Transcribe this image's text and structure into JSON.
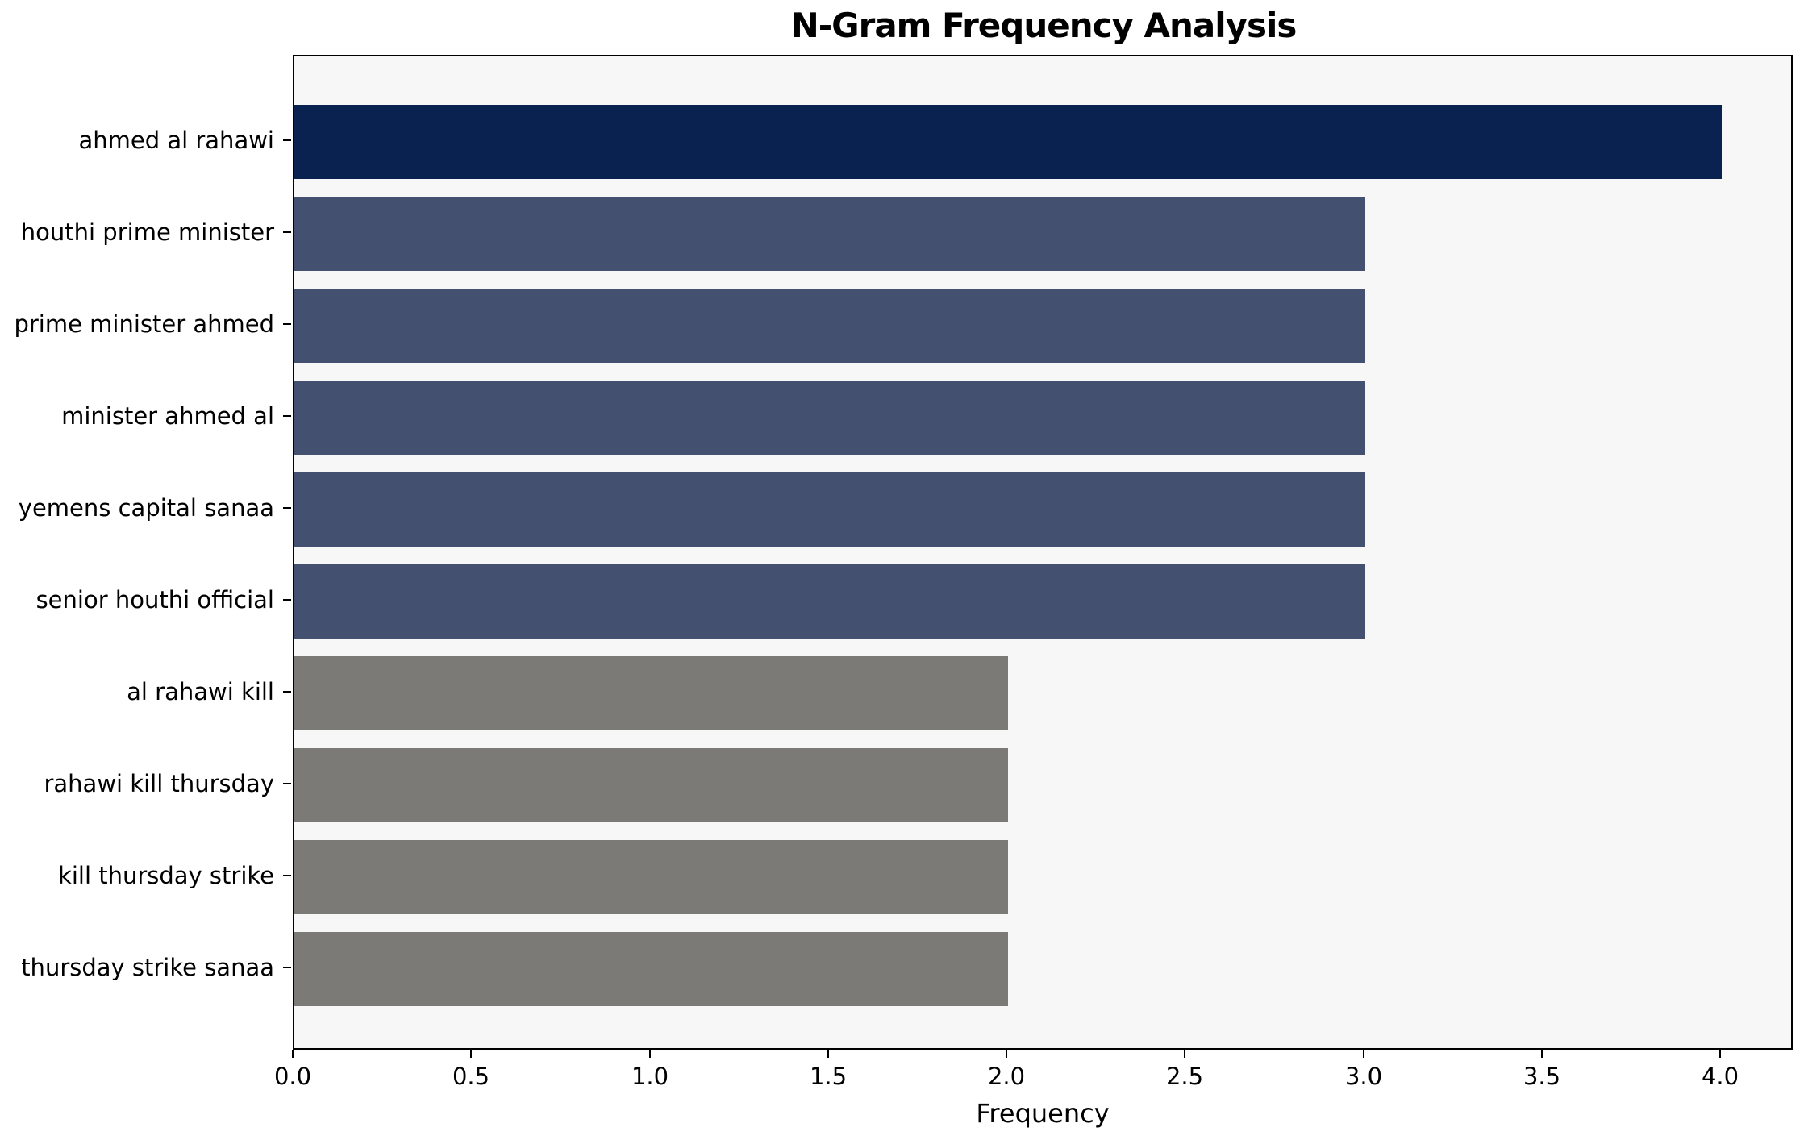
{
  "chart_data": {
    "type": "bar",
    "orientation": "horizontal",
    "title": "N-Gram Frequency Analysis",
    "xlabel": "Frequency",
    "ylabel": "",
    "categories": [
      "ahmed al rahawi",
      "houthi prime minister",
      "prime minister ahmed",
      "minister ahmed al",
      "yemens capital sanaa",
      "senior houthi official",
      "al rahawi kill",
      "rahawi kill thursday",
      "kill thursday strike",
      "thursday strike sanaa"
    ],
    "values": [
      4,
      3,
      3,
      3,
      3,
      3,
      2,
      2,
      2,
      2
    ],
    "bar_colors": [
      "#0a2250",
      "#44506f",
      "#44506f",
      "#44506f",
      "#44506f",
      "#44506f",
      "#7b7a76",
      "#7b7a76",
      "#7b7a76",
      "#7b7a76"
    ],
    "xlim": [
      0,
      4.2
    ],
    "xticks": [
      0.0,
      0.5,
      1.0,
      1.5,
      2.0,
      2.5,
      3.0,
      3.5,
      4.0
    ],
    "xtick_labels": [
      "0.0",
      "0.5",
      "1.0",
      "1.5",
      "2.0",
      "2.5",
      "3.0",
      "3.5",
      "4.0"
    ],
    "plot_bg_color": "#f7f7f7",
    "grid": false,
    "legend": null
  }
}
